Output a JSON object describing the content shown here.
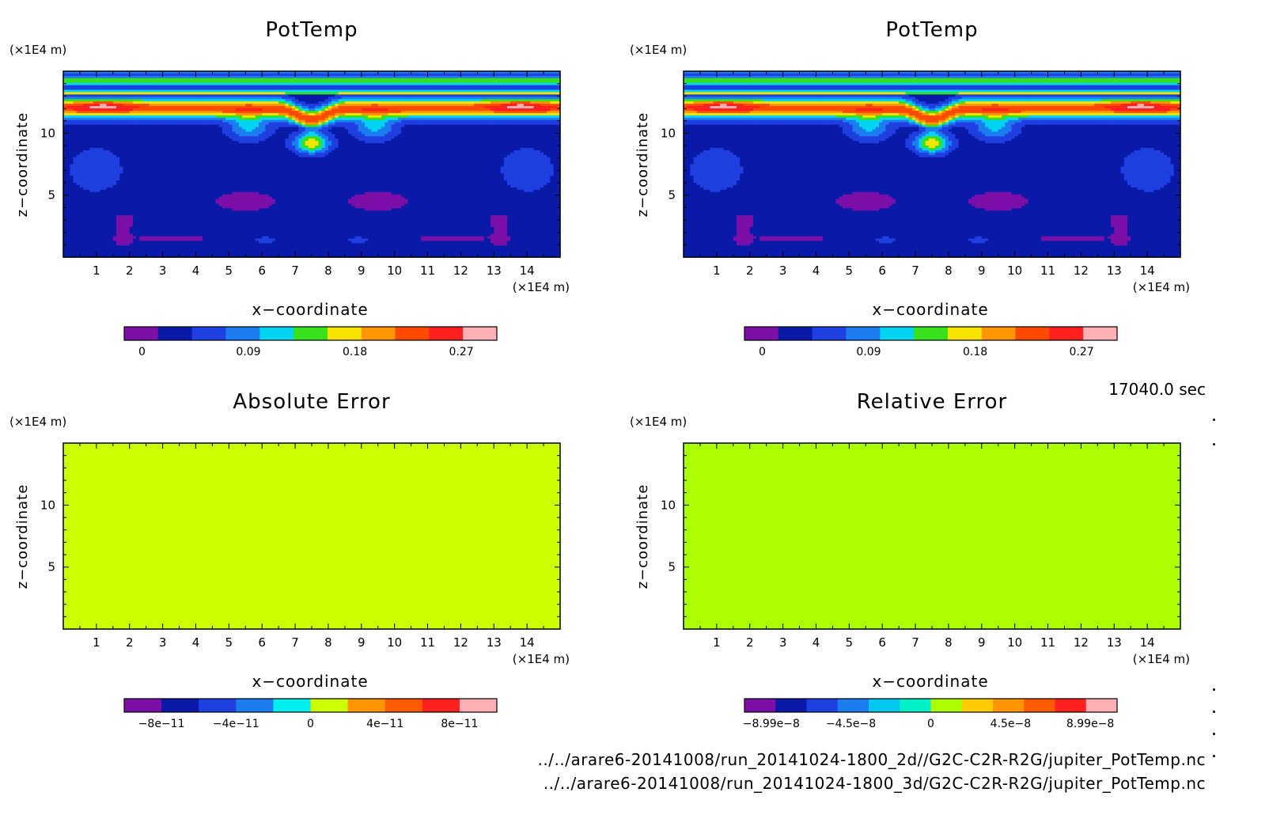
{
  "timestamp": "17040.0 sec",
  "footer": {
    "file1": "../../arare6-20141008/run_20141024-1800_2d//G2C-C2R-R2G/jupiter_PotTemp.nc",
    "file2": "../../arare6-20141008/run_20141024-1800_3d/G2C-C2R-R2G/jupiter_PotTemp.nc"
  },
  "chart_data": [
    {
      "type": "heatmap",
      "title": "PotTemp",
      "xlabel": "x−coordinate",
      "ylabel": "z−coordinate",
      "x_unit": "(×1E4 m)",
      "y_unit": "(×1E4 m)",
      "xlim": [
        0,
        15
      ],
      "ylim": [
        0,
        15
      ],
      "x_ticks": [
        1,
        2,
        3,
        4,
        5,
        6,
        7,
        8,
        9,
        10,
        11,
        12,
        13,
        14
      ],
      "y_ticks": [
        5,
        10
      ],
      "field": "PotTemp",
      "colorbar": {
        "colors": [
          "#7b0fa8",
          "#0a1aa8",
          "#1f3fe0",
          "#1b7df0",
          "#00d4f2",
          "#39e01c",
          "#f5e400",
          "#ff9600",
          "#ff4a00",
          "#ff2020",
          "#ffb0b6"
        ],
        "labels": [
          {
            "text": "0",
            "value": 0
          },
          {
            "text": "0.09",
            "value": 0.09
          },
          {
            "text": "0.18",
            "value": 0.18
          },
          {
            "text": "0.27",
            "value": 0.27
          }
        ],
        "range": [
          -0.015,
          0.3
        ]
      }
    },
    {
      "type": "heatmap",
      "title": "PotTemp",
      "xlabel": "x−coordinate",
      "ylabel": "z−coordinate",
      "x_unit": "(×1E4 m)",
      "y_unit": "(×1E4 m)",
      "xlim": [
        0,
        15
      ],
      "ylim": [
        0,
        15
      ],
      "x_ticks": [
        1,
        2,
        3,
        4,
        5,
        6,
        7,
        8,
        9,
        10,
        11,
        12,
        13,
        14
      ],
      "y_ticks": [
        5,
        10
      ],
      "field": "PotTemp",
      "colorbar": {
        "colors": [
          "#7b0fa8",
          "#0a1aa8",
          "#1f3fe0",
          "#1b7df0",
          "#00d4f2",
          "#39e01c",
          "#f5e400",
          "#ff9600",
          "#ff4a00",
          "#ff2020",
          "#ffb0b6"
        ],
        "labels": [
          {
            "text": "0",
            "value": 0
          },
          {
            "text": "0.09",
            "value": 0.09
          },
          {
            "text": "0.18",
            "value": 0.18
          },
          {
            "text": "0.27",
            "value": 0.27
          }
        ],
        "range": [
          -0.015,
          0.3
        ]
      }
    },
    {
      "type": "heatmap",
      "title": "Absolute Error",
      "xlabel": "x−coordinate",
      "ylabel": "z−coordinate",
      "x_unit": "(×1E4 m)",
      "y_unit": "(×1E4 m)",
      "xlim": [
        0,
        15
      ],
      "ylim": [
        0,
        15
      ],
      "x_ticks": [
        1,
        2,
        3,
        4,
        5,
        6,
        7,
        8,
        9,
        10,
        11,
        12,
        13,
        14
      ],
      "y_ticks": [
        5,
        10
      ],
      "field": "uniform",
      "fill_color": "#ccff00",
      "colorbar": {
        "colors": [
          "#7b0fa8",
          "#0a1aa8",
          "#1f3fe0",
          "#1b7df0",
          "#00f0f0",
          "#ccff00",
          "#ff9600",
          "#ff5a00",
          "#ff2020",
          "#ffb0b6"
        ],
        "labels": [
          {
            "text": "−8e−11",
            "value": -8e-11
          },
          {
            "text": "−4e−11",
            "value": -4e-11
          },
          {
            "text": "0",
            "value": 0
          },
          {
            "text": "4e−11",
            "value": 4e-11
          },
          {
            "text": "8e−11",
            "value": 8e-11
          }
        ],
        "range": [
          -1e-10,
          1e-10
        ]
      }
    },
    {
      "type": "heatmap",
      "title": "Relative Error",
      "xlabel": "x−coordinate",
      "ylabel": "z−coordinate",
      "x_unit": "(×1E4 m)",
      "y_unit": "(×1E4 m)",
      "xlim": [
        0,
        15
      ],
      "ylim": [
        0,
        15
      ],
      "x_ticks": [
        1,
        2,
        3,
        4,
        5,
        6,
        7,
        8,
        9,
        10,
        11,
        12,
        13,
        14
      ],
      "y_ticks": [
        5,
        10
      ],
      "field": "uniform",
      "fill_color": "#aaff00",
      "colorbar": {
        "colors": [
          "#7b0fa8",
          "#0a1aa8",
          "#1f3fe0",
          "#1b7df0",
          "#00c8f0",
          "#00f0c8",
          "#aaff00",
          "#ffcc00",
          "#ff9600",
          "#ff5a00",
          "#ff2020",
          "#ffb0b6"
        ],
        "labels": [
          {
            "text": "−8.99e−8",
            "value": -8.99e-08
          },
          {
            "text": "−4.5e−8",
            "value": -4.5e-08
          },
          {
            "text": "0",
            "value": 0
          },
          {
            "text": "4.5e−8",
            "value": 4.5e-08
          },
          {
            "text": "8.99e−8",
            "value": 8.99e-08
          }
        ],
        "range": [
          -1.05e-07,
          1.05e-07
        ]
      }
    }
  ]
}
